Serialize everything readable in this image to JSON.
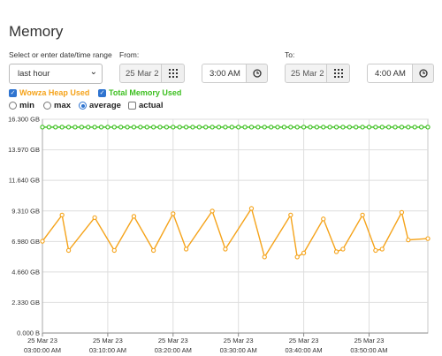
{
  "page": {
    "title": "Memory"
  },
  "controls": {
    "range_label": "Select or enter date/time range",
    "range_value": "last hour",
    "from_label": "From:",
    "from_date": "25 Mar 2",
    "from_time": "3:00 AM",
    "to_label": "To:",
    "to_date": "25 Mar 2",
    "to_time": "4:00 AM"
  },
  "series_toggles": [
    {
      "label": "Wowza Heap Used",
      "checked": true,
      "color": "#f5a31a"
    },
    {
      "label": "Total Memory Used",
      "checked": true,
      "color": "#3cbf1f"
    }
  ],
  "aggregations": [
    {
      "label": "min",
      "type": "radio",
      "checked": false
    },
    {
      "label": "max",
      "type": "radio",
      "checked": false
    },
    {
      "label": "average",
      "type": "radio",
      "checked": true
    },
    {
      "label": "actual",
      "type": "checkbox",
      "checked": false
    }
  ],
  "chart_data": {
    "type": "line",
    "ylim": [
      0,
      16.3
    ],
    "yticks": [
      {
        "value": 0,
        "label": "0.000 B"
      },
      {
        "value": 2.33,
        "label": "2.330 GB"
      },
      {
        "value": 4.66,
        "label": "4.660 GB"
      },
      {
        "value": 6.98,
        "label": "6.980 GB"
      },
      {
        "value": 9.31,
        "label": "9.310 GB"
      },
      {
        "value": 11.64,
        "label": "11.640 GB"
      },
      {
        "value": 13.97,
        "label": "13.970 GB"
      },
      {
        "value": 16.3,
        "label": "16.300 GB"
      }
    ],
    "xlim": [
      0,
      59
    ],
    "xticks": [
      {
        "value": 0,
        "date": "25 Mar 23",
        "time": "03:00:00 AM"
      },
      {
        "value": 10,
        "date": "25 Mar 23",
        "time": "03:10:00 AM"
      },
      {
        "value": 20,
        "date": "25 Mar 23",
        "time": "03:20:00 AM"
      },
      {
        "value": 30,
        "date": "25 Mar 23",
        "time": "03:30:00 AM"
      },
      {
        "value": 40,
        "date": "25 Mar 23",
        "time": "03:40:00 AM"
      },
      {
        "value": 50,
        "date": "25 Mar 23",
        "time": "03:50:00 AM"
      }
    ],
    "grid": true,
    "series": [
      {
        "name": "Total Memory Used",
        "color": "#3cbf1f",
        "points": [
          [
            0,
            15.7
          ],
          [
            1,
            15.7
          ],
          [
            2,
            15.7
          ],
          [
            3,
            15.7
          ],
          [
            4,
            15.7
          ],
          [
            5,
            15.7
          ],
          [
            6,
            15.7
          ],
          [
            7,
            15.7
          ],
          [
            8,
            15.7
          ],
          [
            9,
            15.7
          ],
          [
            10,
            15.7
          ],
          [
            11,
            15.7
          ],
          [
            12,
            15.7
          ],
          [
            13,
            15.7
          ],
          [
            14,
            15.7
          ],
          [
            15,
            15.7
          ],
          [
            16,
            15.7
          ],
          [
            17,
            15.7
          ],
          [
            18,
            15.7
          ],
          [
            19,
            15.7
          ],
          [
            20,
            15.7
          ],
          [
            21,
            15.7
          ],
          [
            22,
            15.7
          ],
          [
            23,
            15.7
          ],
          [
            24,
            15.7
          ],
          [
            25,
            15.7
          ],
          [
            26,
            15.7
          ],
          [
            27,
            15.7
          ],
          [
            28,
            15.7
          ],
          [
            29,
            15.7
          ],
          [
            30,
            15.7
          ],
          [
            31,
            15.7
          ],
          [
            32,
            15.7
          ],
          [
            33,
            15.7
          ],
          [
            34,
            15.7
          ],
          [
            35,
            15.7
          ],
          [
            36,
            15.7
          ],
          [
            37,
            15.7
          ],
          [
            38,
            15.7
          ],
          [
            39,
            15.7
          ],
          [
            40,
            15.7
          ],
          [
            41,
            15.7
          ],
          [
            42,
            15.7
          ],
          [
            43,
            15.7
          ],
          [
            44,
            15.7
          ],
          [
            45,
            15.7
          ],
          [
            46,
            15.7
          ],
          [
            47,
            15.7
          ],
          [
            48,
            15.7
          ],
          [
            49,
            15.7
          ],
          [
            50,
            15.7
          ],
          [
            51,
            15.7
          ],
          [
            52,
            15.7
          ],
          [
            53,
            15.7
          ],
          [
            54,
            15.7
          ],
          [
            55,
            15.7
          ],
          [
            56,
            15.7
          ],
          [
            57,
            15.7
          ],
          [
            58,
            15.7
          ],
          [
            59,
            15.7
          ]
        ]
      },
      {
        "name": "Wowza Heap Used",
        "color": "#f5a31a",
        "points": [
          [
            0,
            7.0
          ],
          [
            3,
            9.0
          ],
          [
            4,
            6.3
          ],
          [
            8,
            8.8
          ],
          [
            11,
            6.3
          ],
          [
            14,
            8.9
          ],
          [
            17,
            6.3
          ],
          [
            20,
            9.1
          ],
          [
            22,
            6.4
          ],
          [
            26,
            9.3
          ],
          [
            28,
            6.4
          ],
          [
            32,
            9.5
          ],
          [
            34,
            5.8
          ],
          [
            38,
            9.0
          ],
          [
            39,
            5.8
          ],
          [
            40,
            6.1
          ],
          [
            43,
            8.7
          ],
          [
            45,
            6.2
          ],
          [
            46,
            6.4
          ],
          [
            49,
            9.0
          ],
          [
            51,
            6.3
          ],
          [
            52,
            6.4
          ],
          [
            55,
            9.2
          ],
          [
            56,
            7.1
          ],
          [
            59,
            7.2
          ]
        ]
      }
    ]
  }
}
